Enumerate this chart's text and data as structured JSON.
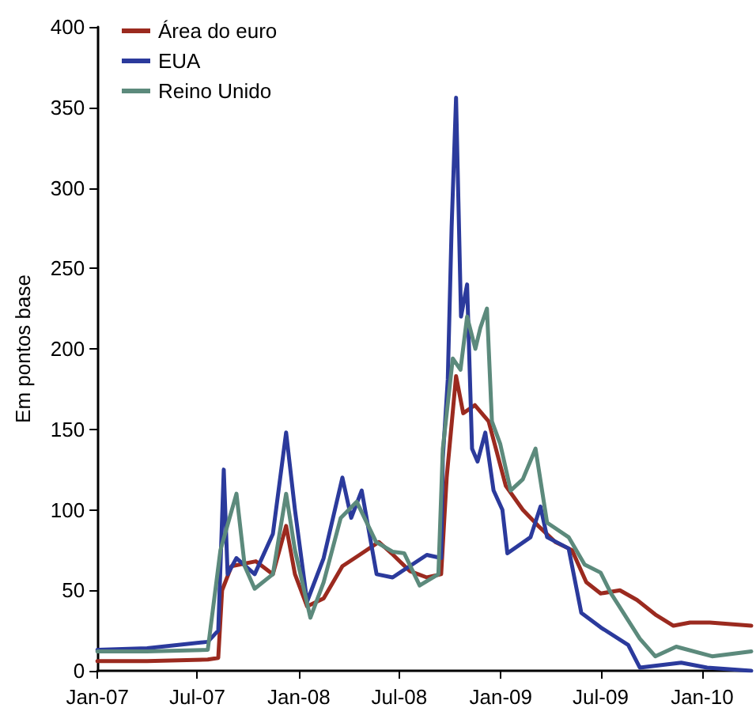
{
  "chart_data": {
    "type": "line",
    "ylabel": "Em pontos base",
    "xlim": [
      "2007-01-01",
      "2010-03-31"
    ],
    "ylim": [
      0,
      400
    ],
    "yticks": [
      0,
      50,
      100,
      150,
      200,
      250,
      300,
      350,
      400
    ],
    "xticks": [
      {
        "value": "2007-01-01",
        "label": "Jan-07"
      },
      {
        "value": "2007-07-01",
        "label": "Jul-07"
      },
      {
        "value": "2008-01-01",
        "label": "Jan-08"
      },
      {
        "value": "2008-07-01",
        "label": "Jul-08"
      },
      {
        "value": "2009-01-01",
        "label": "Jan-09"
      },
      {
        "value": "2009-07-01",
        "label": "Jul-09"
      },
      {
        "value": "2010-01-01",
        "label": "Jan-10"
      }
    ],
    "grid": false,
    "legend": "top left",
    "marker": "none",
    "line_style": "solid",
    "series": [
      {
        "name": "Área do euro",
        "color": "#9b2a1f",
        "x": [
          "2007-01-01",
          "2007-04-01",
          "2007-07-20",
          "2007-08-08",
          "2007-08-15",
          "2007-09-01",
          "2007-10-15",
          "2007-11-15",
          "2007-12-09",
          "2007-12-25",
          "2008-01-16",
          "2008-02-15",
          "2008-03-20",
          "2008-04-20",
          "2008-05-25",
          "2008-06-20",
          "2008-07-20",
          "2008-08-20",
          "2008-09-15",
          "2008-09-25",
          "2008-10-12",
          "2008-10-25",
          "2008-11-15",
          "2008-12-10",
          "2009-01-10",
          "2009-02-10",
          "2009-03-10",
          "2009-04-10",
          "2009-05-10",
          "2009-06-05",
          "2009-07-01",
          "2009-08-05",
          "2009-09-05",
          "2009-10-08",
          "2009-11-10",
          "2009-12-10",
          "2010-01-15",
          "2010-03-31"
        ],
        "values": [
          6,
          6,
          7,
          8,
          50,
          65,
          68,
          60,
          90,
          60,
          40,
          45,
          65,
          72,
          80,
          72,
          62,
          58,
          60,
          120,
          183,
          160,
          165,
          155,
          115,
          100,
          90,
          80,
          75,
          55,
          48,
          50,
          44,
          35,
          28,
          30,
          30,
          28
        ]
      },
      {
        "name": "EUA",
        "color": "#2b3a9c",
        "x": [
          "2007-01-01",
          "2007-04-01",
          "2007-07-20",
          "2007-08-08",
          "2007-08-18",
          "2007-08-25",
          "2007-09-10",
          "2007-10-13",
          "2007-11-15",
          "2007-12-09",
          "2007-12-25",
          "2008-01-16",
          "2008-02-15",
          "2008-03-20",
          "2008-04-05",
          "2008-04-24",
          "2008-05-21",
          "2008-06-19",
          "2008-07-20",
          "2008-08-20",
          "2008-09-15",
          "2008-09-18",
          "2008-09-27",
          "2008-10-04",
          "2008-10-12",
          "2008-10-21",
          "2008-11-01",
          "2008-11-10",
          "2008-11-20",
          "2008-12-04",
          "2008-12-19",
          "2009-01-04",
          "2009-01-13",
          "2009-02-24",
          "2009-03-14",
          "2009-03-26",
          "2009-05-04",
          "2009-05-27",
          "2009-07-01",
          "2009-08-20",
          "2009-09-10",
          "2009-11-24",
          "2010-01-10",
          "2010-03-31"
        ],
        "values": [
          13,
          14,
          18,
          25,
          125,
          60,
          70,
          60,
          85,
          148,
          100,
          43,
          70,
          120,
          95,
          112,
          60,
          58,
          65,
          72,
          70,
          132,
          181,
          276,
          356,
          220,
          240,
          138,
          130,
          148,
          112,
          100,
          73,
          83,
          102,
          83,
          76,
          36,
          27,
          16,
          2,
          5,
          2,
          0
        ]
      },
      {
        "name": "Reino Unido",
        "color": "#5c8a7c",
        "x": [
          "2007-01-01",
          "2007-04-01",
          "2007-07-20",
          "2007-08-12",
          "2007-09-10",
          "2007-09-25",
          "2007-10-13",
          "2007-11-15",
          "2007-12-09",
          "2007-12-25",
          "2008-01-22",
          "2008-02-15",
          "2008-03-17",
          "2008-04-15",
          "2008-05-20",
          "2008-06-19",
          "2008-07-10",
          "2008-08-07",
          "2008-09-10",
          "2008-09-18",
          "2008-10-06",
          "2008-10-20",
          "2008-11-01",
          "2008-11-16",
          "2008-11-25",
          "2008-12-07",
          "2008-12-16",
          "2008-12-31",
          "2009-01-19",
          "2009-02-10",
          "2009-03-05",
          "2009-03-26",
          "2009-05-04",
          "2009-06-02",
          "2009-07-01",
          "2009-07-20",
          "2009-09-10",
          "2009-10-08",
          "2009-11-15",
          "2010-01-19",
          "2010-03-31"
        ],
        "values": [
          12,
          12,
          13,
          75,
          110,
          65,
          51,
          60,
          110,
          75,
          33,
          55,
          95,
          105,
          80,
          74,
          73,
          53,
          60,
          138,
          194,
          187,
          220,
          200,
          213,
          225,
          155,
          141,
          112,
          119,
          138,
          92,
          83,
          66,
          61,
          48,
          20,
          9,
          15,
          9,
          12
        ]
      }
    ]
  }
}
